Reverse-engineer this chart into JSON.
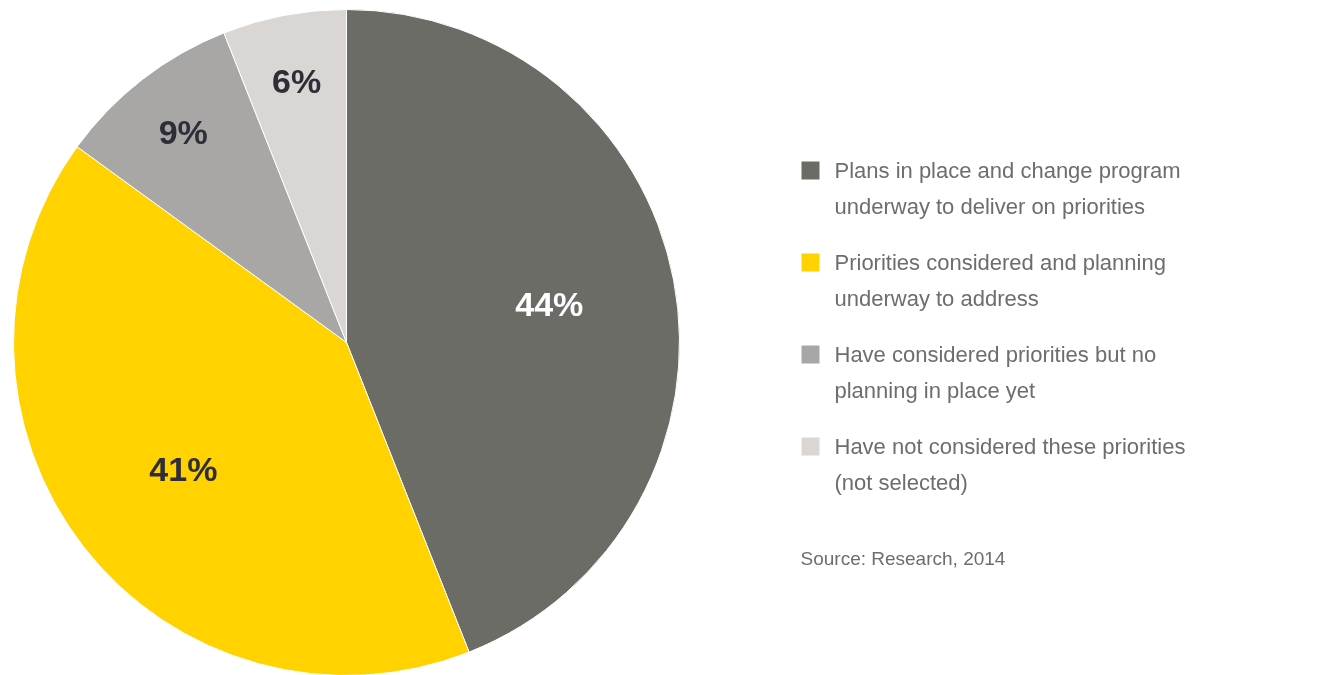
{
  "chart_data": {
    "type": "pie",
    "categories": [
      "Plans in place and change program underway to deliver on priorities",
      "Priorities considered and planning underway to address",
      "Have considered priorities but no planning in place yet",
      "Have not considered these priorities (not selected)"
    ],
    "values": [
      44,
      41,
      9,
      6
    ],
    "colors": [
      "#6c6c67",
      "#ffd200",
      "#a8a7a5",
      "#d9d6d3"
    ],
    "value_labels": [
      "44%",
      "41%",
      "9%",
      "6%"
    ],
    "legend": "right",
    "annotations": [
      "Source: Research, 2014"
    ]
  }
}
